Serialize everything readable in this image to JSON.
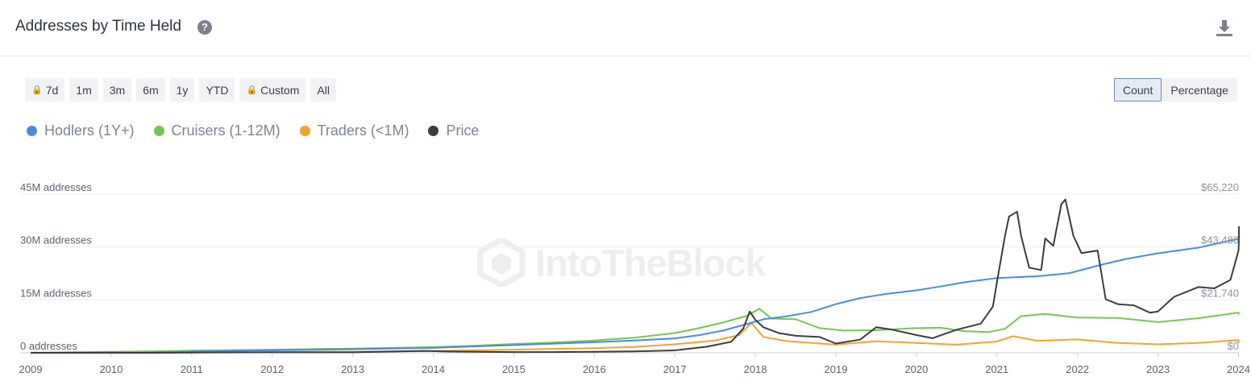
{
  "header": {
    "title": "Addresses by Time Held",
    "help_icon": "?",
    "download_icon_name": "download-icon"
  },
  "ranges": [
    {
      "label": "7d",
      "locked": true
    },
    {
      "label": "1m",
      "locked": false
    },
    {
      "label": "3m",
      "locked": false
    },
    {
      "label": "6m",
      "locked": false
    },
    {
      "label": "1y",
      "locked": false
    },
    {
      "label": "YTD",
      "locked": false
    },
    {
      "label": "Custom",
      "locked": true
    },
    {
      "label": "All",
      "locked": false
    }
  ],
  "modes": {
    "count": "Count",
    "percentage": "Percentage",
    "active": "Count"
  },
  "watermark": "IntoTheBlock",
  "colors": {
    "hodlers": "#4a8be0",
    "cruisers": "#76c552",
    "traders": "#f2a42a",
    "price": "#3a3d42"
  },
  "chart_data": {
    "type": "line",
    "title": "Addresses by Time Held",
    "y_axis_left": {
      "ticks": [
        "0 addresses",
        "15M addresses",
        "30M addresses",
        "45M addresses"
      ],
      "range": [
        0,
        45000000
      ]
    },
    "y_axis_right": {
      "ticks": [
        "$0",
        "$21,740",
        "$43,480",
        "$65,220"
      ],
      "range": [
        0,
        65220
      ]
    },
    "x_ticks": [
      "2009",
      "2010",
      "2011",
      "2012",
      "2013",
      "2014",
      "2015",
      "2016",
      "2017",
      "2018",
      "2019",
      "2020",
      "2021",
      "2022",
      "2023",
      "2024"
    ],
    "legend_position": "top-left",
    "grid": true,
    "series": [
      {
        "name": "Hodlers (1Y+)",
        "axis": "left",
        "x": [
          2009,
          2010.5,
          2011,
          2012,
          2013,
          2014,
          2014.5,
          2015,
          2015.5,
          2016,
          2016.5,
          2017,
          2017.3,
          2017.6,
          2017.9,
          2018.1,
          2018.4,
          2018.7,
          2019,
          2019.3,
          2019.6,
          2020,
          2020.3,
          2020.6,
          2021,
          2021.5,
          2021.9,
          2022.3,
          2022.6,
          2023,
          2023.5,
          2024,
          2024.15
        ],
        "values": [
          0,
          100000,
          400000,
          700000,
          1000000,
          1400000,
          1800000,
          2200000,
          2600000,
          3000000,
          3500000,
          4100000,
          5000000,
          6300000,
          8200000,
          9500000,
          10400000,
          11600000,
          13800000,
          15500000,
          16600000,
          17700000,
          18800000,
          20000000,
          21200000,
          21700000,
          22600000,
          25000000,
          26600000,
          28200000,
          29800000,
          32300000,
          33600000
        ]
      },
      {
        "name": "Cruisers (1-12M)",
        "axis": "left",
        "x": [
          2009,
          2010.5,
          2011,
          2012,
          2013,
          2014,
          2014.5,
          2015,
          2015.5,
          2016,
          2016.5,
          2017,
          2017.3,
          2017.6,
          2017.9,
          2018.05,
          2018.2,
          2018.5,
          2018.8,
          2019.1,
          2019.5,
          2019.9,
          2020.3,
          2020.6,
          2020.9,
          2021.1,
          2021.3,
          2021.6,
          2022,
          2022.5,
          2023,
          2023.5,
          2024,
          2024.15
        ],
        "values": [
          0,
          400000,
          600000,
          900000,
          1200000,
          1600000,
          2000000,
          2500000,
          2900000,
          3500000,
          4300000,
          5600000,
          7000000,
          8600000,
          10500000,
          12500000,
          9700000,
          9500000,
          7000000,
          6300000,
          6400000,
          6900000,
          7100000,
          6100000,
          5900000,
          6800000,
          10400000,
          11000000,
          10000000,
          9900000,
          8700000,
          9800000,
          11400000,
          10800000
        ]
      },
      {
        "name": "Traders (<1M)",
        "axis": "left",
        "x": [
          2009,
          2010.5,
          2011,
          2012,
          2013,
          2014,
          2015,
          2016,
          2016.5,
          2017,
          2017.5,
          2017.8,
          2017.95,
          2018.1,
          2018.4,
          2019,
          2019.5,
          2020,
          2020.5,
          2021,
          2021.2,
          2021.5,
          2022,
          2022.5,
          2023,
          2023.5,
          2024,
          2024.15
        ],
        "values": [
          0,
          0,
          100000,
          200000,
          300000,
          500000,
          900000,
          1300000,
          1700000,
          2400000,
          3500000,
          5000000,
          8500000,
          4500000,
          3300000,
          2300000,
          3300000,
          2800000,
          2300000,
          3200000,
          4700000,
          3400000,
          3800000,
          2800000,
          2400000,
          2800000,
          3600000,
          2800000
        ]
      },
      {
        "name": "Price",
        "axis": "right",
        "x": [
          2009,
          2010.5,
          2011,
          2012,
          2013,
          2013.9,
          2014.1,
          2014.5,
          2015,
          2015.5,
          2016,
          2016.5,
          2017,
          2017.4,
          2017.7,
          2017.85,
          2017.93,
          2018,
          2018.1,
          2018.3,
          2018.5,
          2018.8,
          2019,
          2019.3,
          2019.5,
          2019.7,
          2020,
          2020.2,
          2020.5,
          2020.8,
          2020.95,
          2021.0,
          2021.1,
          2021.15,
          2021.25,
          2021.3,
          2021.4,
          2021.55,
          2021.6,
          2021.7,
          2021.8,
          2021.85,
          2021.95,
          2022.05,
          2022.25,
          2022.35,
          2022.5,
          2022.7,
          2022.9,
          2023,
          2023.2,
          2023.5,
          2023.7,
          2023.9,
          2024,
          2024.1,
          2024.15
        ],
        "values": [
          0,
          0,
          100,
          200,
          200,
          800,
          600,
          400,
          300,
          300,
          400,
          600,
          1000,
          2500,
          4500,
          10000,
          17000,
          13500,
          10500,
          8000,
          7000,
          6500,
          3800,
          5400,
          10500,
          9500,
          7300,
          6000,
          9500,
          12000,
          19000,
          29000,
          48000,
          56000,
          58000,
          48000,
          35000,
          34000,
          47000,
          44000,
          61000,
          63000,
          48000,
          41000,
          42000,
          22000,
          20000,
          19500,
          16500,
          17000,
          23000,
          27000,
          26500,
          30000,
          42000,
          46000,
          52000
        ]
      }
    ]
  }
}
